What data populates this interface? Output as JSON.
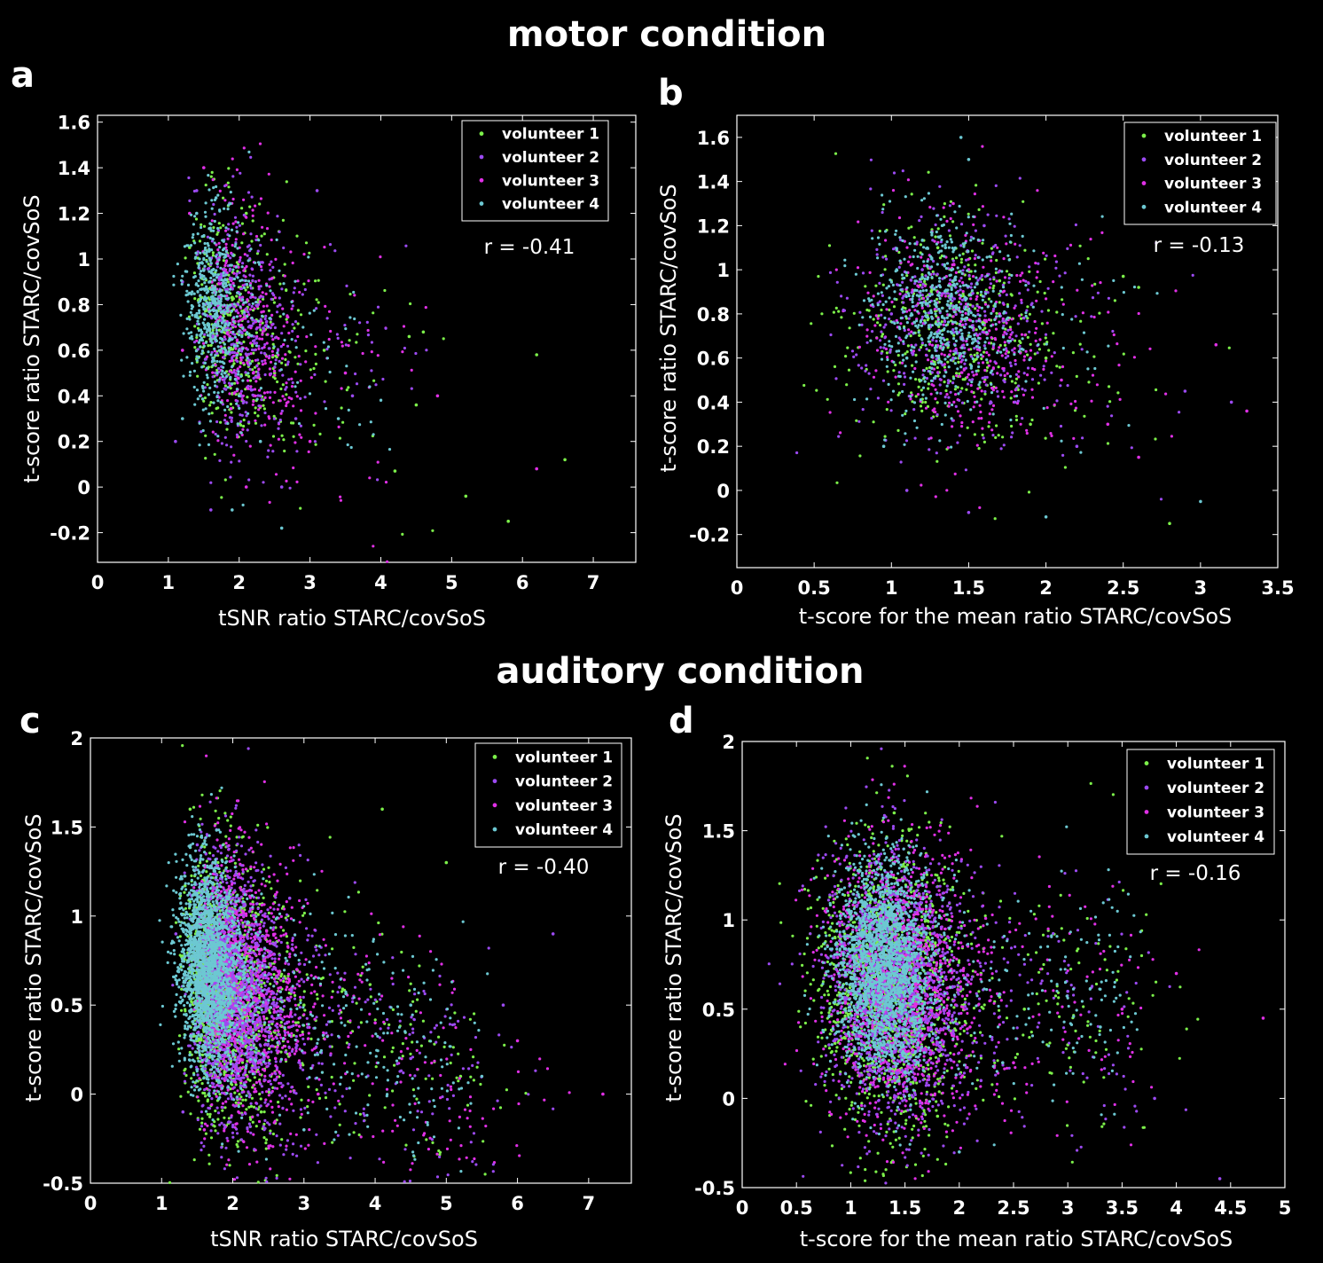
{
  "figure": {
    "titles": [
      "motor condition",
      "auditory condition"
    ]
  },
  "colors": {
    "volunteer_1": "#7cf04a",
    "volunteer_2": "#9c4af2",
    "volunteer_3": "#e030e6",
    "volunteer_4": "#6cc8d2"
  },
  "chart_data": [
    {
      "panel": "a",
      "type": "scatter",
      "condition": "motor condition",
      "xlabel": "tSNR ratio STARC/covSoS",
      "ylabel": "t-score ratio STARC/covSoS",
      "xlim": [
        0,
        7.6
      ],
      "ylim": [
        -0.33,
        1.63
      ],
      "xticks": [
        "0",
        "1",
        "2",
        "3",
        "4",
        "5",
        "6",
        "7"
      ],
      "yticks": [
        "-0.2",
        "0",
        "0.2",
        "0.4",
        "0.6",
        "0.8",
        "1",
        "1.2",
        "1.4",
        "1.6"
      ],
      "legend": [
        "volunteer 1",
        "volunteer 2",
        "volunteer 3",
        "volunteer 4"
      ],
      "legend_position": "top-right",
      "annotation": "r = -0.41",
      "r": -0.41,
      "series": [
        {
          "name": "volunteer 1",
          "values": [
            [
              1.3,
              1.05
            ],
            [
              1.6,
              0.9
            ],
            [
              2.1,
              1.2
            ],
            [
              1.8,
              0.7
            ],
            [
              1.4,
              0.6
            ],
            [
              2.5,
              0.5
            ],
            [
              1.5,
              1.1
            ],
            [
              3.2,
              0.6
            ],
            [
              4.4,
              0.66
            ],
            [
              4.6,
              0.68
            ],
            [
              6.2,
              0.58
            ],
            [
              6.6,
              0.12
            ],
            [
              5.8,
              -0.15
            ],
            [
              5.2,
              -0.04
            ],
            [
              4.5,
              0.36
            ],
            [
              4.2,
              0.07
            ]
          ]
        },
        {
          "name": "volunteer 2",
          "values": [
            [
              1.2,
              0.9
            ],
            [
              1.5,
              0.8
            ],
            [
              1.7,
              1.0
            ],
            [
              2.0,
              0.6
            ],
            [
              2.3,
              0.4
            ],
            [
              1.4,
              1.3
            ],
            [
              2.8,
              0.3
            ],
            [
              3.1,
              1.3
            ],
            [
              3.6,
              0.4
            ],
            [
              1.1,
              0.2
            ],
            [
              2.6,
              0.0
            ],
            [
              1.6,
              -0.1
            ]
          ]
        },
        {
          "name": "volunteer 3",
          "values": [
            [
              1.3,
              1.2
            ],
            [
              1.6,
              1.0
            ],
            [
              1.9,
              0.8
            ],
            [
              2.2,
              0.5
            ],
            [
              1.5,
              1.4
            ],
            [
              2.4,
              0.7
            ],
            [
              3.0,
              0.2
            ],
            [
              3.5,
              0.5
            ],
            [
              6.2,
              0.08
            ],
            [
              4.8,
              0.4
            ],
            [
              1.2,
              0.6
            ],
            [
              2.1,
              0.0
            ]
          ]
        },
        {
          "name": "volunteer 4",
          "values": [
            [
              1.3,
              0.85
            ],
            [
              1.4,
              0.75
            ],
            [
              1.5,
              0.95
            ],
            [
              1.6,
              0.65
            ],
            [
              1.8,
              0.5
            ],
            [
              2.0,
              0.4
            ],
            [
              1.4,
              1.2
            ],
            [
              2.6,
              -0.18
            ],
            [
              1.9,
              -0.1
            ],
            [
              3.4,
              0.3
            ],
            [
              1.2,
              0.3
            ],
            [
              2.3,
              0.2
            ]
          ]
        }
      ]
    },
    {
      "panel": "b",
      "type": "scatter",
      "condition": "motor condition",
      "xlabel": "t-score for the mean ratio STARC/covSoS",
      "ylabel": "t-score ratio STARC/covSoS",
      "xlim": [
        0,
        3.5
      ],
      "ylim": [
        -0.35,
        1.7
      ],
      "xticks": [
        "0",
        "0.5",
        "1",
        "1.5",
        "2",
        "2.5",
        "3",
        "3.5"
      ],
      "yticks": [
        "-0.2",
        "0",
        "0.2",
        "0.4",
        "0.6",
        "0.8",
        "1",
        "1.2",
        "1.4",
        "1.6"
      ],
      "legend": [
        "volunteer 1",
        "volunteer 2",
        "volunteer 3",
        "volunteer 4"
      ],
      "legend_position": "top-right",
      "annotation": "r = -0.13",
      "r": -0.13,
      "series": [
        {
          "name": "volunteer 1",
          "values": [
            [
              1.1,
              0.9
            ],
            [
              1.3,
              1.1
            ],
            [
              1.5,
              0.7
            ],
            [
              1.7,
              0.95
            ],
            [
              2.0,
              0.6
            ],
            [
              2.5,
              0.97
            ],
            [
              2.6,
              0.92
            ],
            [
              2.8,
              -0.15
            ],
            [
              1.2,
              0.4
            ],
            [
              1.9,
              0.3
            ]
          ]
        },
        {
          "name": "volunteer 2",
          "values": [
            [
              1.0,
              0.8
            ],
            [
              1.2,
              1.0
            ],
            [
              1.4,
              0.6
            ],
            [
              1.6,
              1.2
            ],
            [
              1.8,
              0.4
            ],
            [
              2.2,
              0.2
            ],
            [
              2.9,
              0.45
            ],
            [
              3.2,
              0.4
            ],
            [
              1.1,
              0.0
            ],
            [
              1.5,
              -0.1
            ]
          ]
        },
        {
          "name": "volunteer 3",
          "values": [
            [
              1.3,
              0.9
            ],
            [
              1.5,
              1.0
            ],
            [
              1.7,
              0.8
            ],
            [
              1.9,
              0.6
            ],
            [
              2.1,
              0.5
            ],
            [
              2.4,
              0.3
            ],
            [
              3.3,
              0.36
            ],
            [
              3.1,
              0.66
            ],
            [
              2.6,
              0.15
            ],
            [
              1.4,
              1.3
            ]
          ]
        },
        {
          "name": "volunteer 4",
          "values": [
            [
              1.2,
              0.85
            ],
            [
              1.3,
              0.75
            ],
            [
              1.4,
              0.95
            ],
            [
              1.1,
              0.6
            ],
            [
              1.25,
              0.7
            ],
            [
              1.35,
              1.1
            ],
            [
              1.5,
              1.5
            ],
            [
              1.45,
              1.6
            ],
            [
              3.0,
              -0.05
            ],
            [
              2.0,
              -0.12
            ],
            [
              0.95,
              0.2
            ]
          ]
        }
      ]
    },
    {
      "panel": "c",
      "type": "scatter",
      "condition": "auditory condition",
      "xlabel": "tSNR ratio STARC/covSoS",
      "ylabel": "t-score ratio STARC/covSoS",
      "xlim": [
        0,
        7.6
      ],
      "ylim": [
        -0.5,
        2.0
      ],
      "xticks": [
        "0",
        "1",
        "2",
        "3",
        "4",
        "5",
        "6",
        "7"
      ],
      "yticks": [
        "-0.5",
        "0",
        "0.5",
        "1",
        "1.5",
        "2"
      ],
      "legend": [
        "volunteer 1",
        "volunteer 2",
        "volunteer 3",
        "volunteer 4"
      ],
      "legend_position": "top-right",
      "annotation": "r = -0.40",
      "r": -0.4,
      "series": [
        {
          "name": "volunteer 1",
          "values": [
            [
              1.4,
              1.6
            ],
            [
              1.6,
              1.2
            ],
            [
              2.0,
              1.0
            ],
            [
              2.5,
              0.8
            ],
            [
              3.0,
              0.5
            ],
            [
              4.1,
              1.6
            ],
            [
              5.0,
              1.3
            ],
            [
              5.2,
              0.1
            ],
            [
              1.8,
              0.3
            ],
            [
              2.4,
              -0.1
            ]
          ]
        },
        {
          "name": "volunteer 2",
          "values": [
            [
              1.2,
              0.9
            ],
            [
              1.5,
              1.4
            ],
            [
              1.8,
              0.6
            ],
            [
              2.2,
              0.3
            ],
            [
              2.8,
              1.1
            ],
            [
              3.5,
              0.6
            ],
            [
              6.5,
              0.9
            ],
            [
              5.8,
              0.5
            ],
            [
              1.3,
              -0.1
            ],
            [
              4.5,
              0.2
            ]
          ]
        },
        {
          "name": "volunteer 3",
          "values": [
            [
              1.4,
              0.8
            ],
            [
              1.7,
              1.1
            ],
            [
              2.0,
              0.5
            ],
            [
              2.6,
              0.2
            ],
            [
              3.2,
              0.0
            ],
            [
              4.0,
              0.4
            ],
            [
              6.0,
              0.3
            ],
            [
              7.2,
              0.0
            ],
            [
              1.6,
              -0.2
            ],
            [
              2.9,
              0.7
            ]
          ]
        },
        {
          "name": "volunteer 4",
          "values": [
            [
              1.3,
              0.8
            ],
            [
              1.4,
              0.9
            ],
            [
              1.5,
              0.7
            ],
            [
              1.6,
              0.6
            ],
            [
              1.7,
              1.0
            ],
            [
              2.0,
              0.4
            ],
            [
              2.5,
              0.3
            ],
            [
              3.0,
              -0.2
            ],
            [
              4.5,
              0.5
            ],
            [
              5.5,
              0.1
            ],
            [
              1.2,
              0.5
            ]
          ]
        }
      ]
    },
    {
      "panel": "d",
      "type": "scatter",
      "condition": "auditory condition",
      "xlabel": "t-score for the mean ratio STARC/covSoS",
      "ylabel": "t-score ratio STARC/covSoS",
      "xlim": [
        0,
        5.0
      ],
      "ylim": [
        -0.5,
        2.0
      ],
      "xticks": [
        "0",
        "0.5",
        "1",
        "1.5",
        "2",
        "2.5",
        "3",
        "3.5",
        "4",
        "4.5",
        "5"
      ],
      "yticks": [
        "-0.5",
        "0",
        "0.5",
        "1",
        "1.5",
        "2"
      ],
      "legend": [
        "volunteer 1",
        "volunteer 2",
        "volunteer 3",
        "volunteer 4"
      ],
      "legend_position": "top-right",
      "annotation": "r = -0.16",
      "r": -0.16,
      "series": [
        {
          "name": "volunteer 1",
          "values": [
            [
              1.4,
              1.6
            ],
            [
              1.6,
              1.2
            ],
            [
              1.9,
              1.0
            ],
            [
              2.2,
              0.7
            ],
            [
              2.6,
              0.5
            ],
            [
              3.0,
              0.3
            ],
            [
              1.2,
              0.2
            ],
            [
              1.8,
              -0.1
            ]
          ]
        },
        {
          "name": "volunteer 2",
          "values": [
            [
              1.0,
              0.8
            ],
            [
              1.2,
              1.2
            ],
            [
              1.5,
              0.6
            ],
            [
              1.8,
              0.3
            ],
            [
              2.2,
              0.1
            ],
            [
              3.0,
              0.6
            ],
            [
              4.4,
              -0.45
            ],
            [
              3.8,
              0.0
            ],
            [
              0.8,
              0.3
            ]
          ]
        },
        {
          "name": "volunteer 3",
          "values": [
            [
              1.3,
              0.9
            ],
            [
              1.5,
              1.1
            ],
            [
              1.8,
              0.6
            ],
            [
              2.1,
              0.4
            ],
            [
              2.5,
              0.2
            ],
            [
              3.5,
              0.5
            ],
            [
              4.8,
              0.45
            ],
            [
              4.0,
              0.7
            ],
            [
              1.6,
              -0.1
            ]
          ]
        },
        {
          "name": "volunteer 4",
          "values": [
            [
              1.2,
              0.8
            ],
            [
              1.3,
              0.9
            ],
            [
              1.4,
              0.7
            ],
            [
              1.5,
              0.6
            ],
            [
              1.6,
              1.0
            ],
            [
              1.9,
              0.4
            ],
            [
              2.4,
              0.2
            ],
            [
              3.3,
              0.4
            ],
            [
              2.0,
              -0.3
            ],
            [
              1.1,
              0.3
            ]
          ]
        }
      ]
    }
  ]
}
